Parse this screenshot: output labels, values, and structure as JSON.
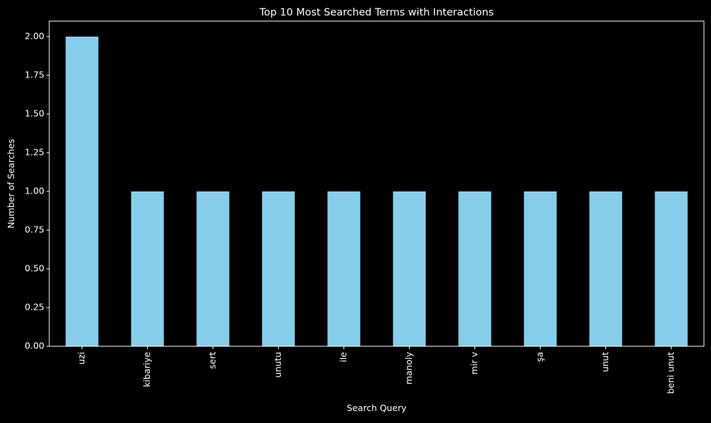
{
  "chart_data": {
    "type": "bar",
    "title": "Top 10 Most Searched Terms with Interactions",
    "xlabel": "Search Query",
    "ylabel": "Number of Searches",
    "categories": [
      "uzi",
      "kibariye",
      "sert",
      "unutu",
      "ile",
      "manoly",
      "mir v",
      "şa",
      "unut",
      "beni unut"
    ],
    "values": [
      2,
      1,
      1,
      1,
      1,
      1,
      1,
      1,
      1,
      1
    ],
    "ylim": [
      0,
      2.1
    ],
    "yticks": [
      "0.00",
      "0.25",
      "0.50",
      "0.75",
      "1.00",
      "1.25",
      "1.50",
      "1.75",
      "2.00"
    ],
    "grid": false,
    "legend": "none"
  },
  "colors": {
    "background": "#000000",
    "bar": "#87ceeb",
    "axis": "#ffffff",
    "text": "#ffffff"
  }
}
